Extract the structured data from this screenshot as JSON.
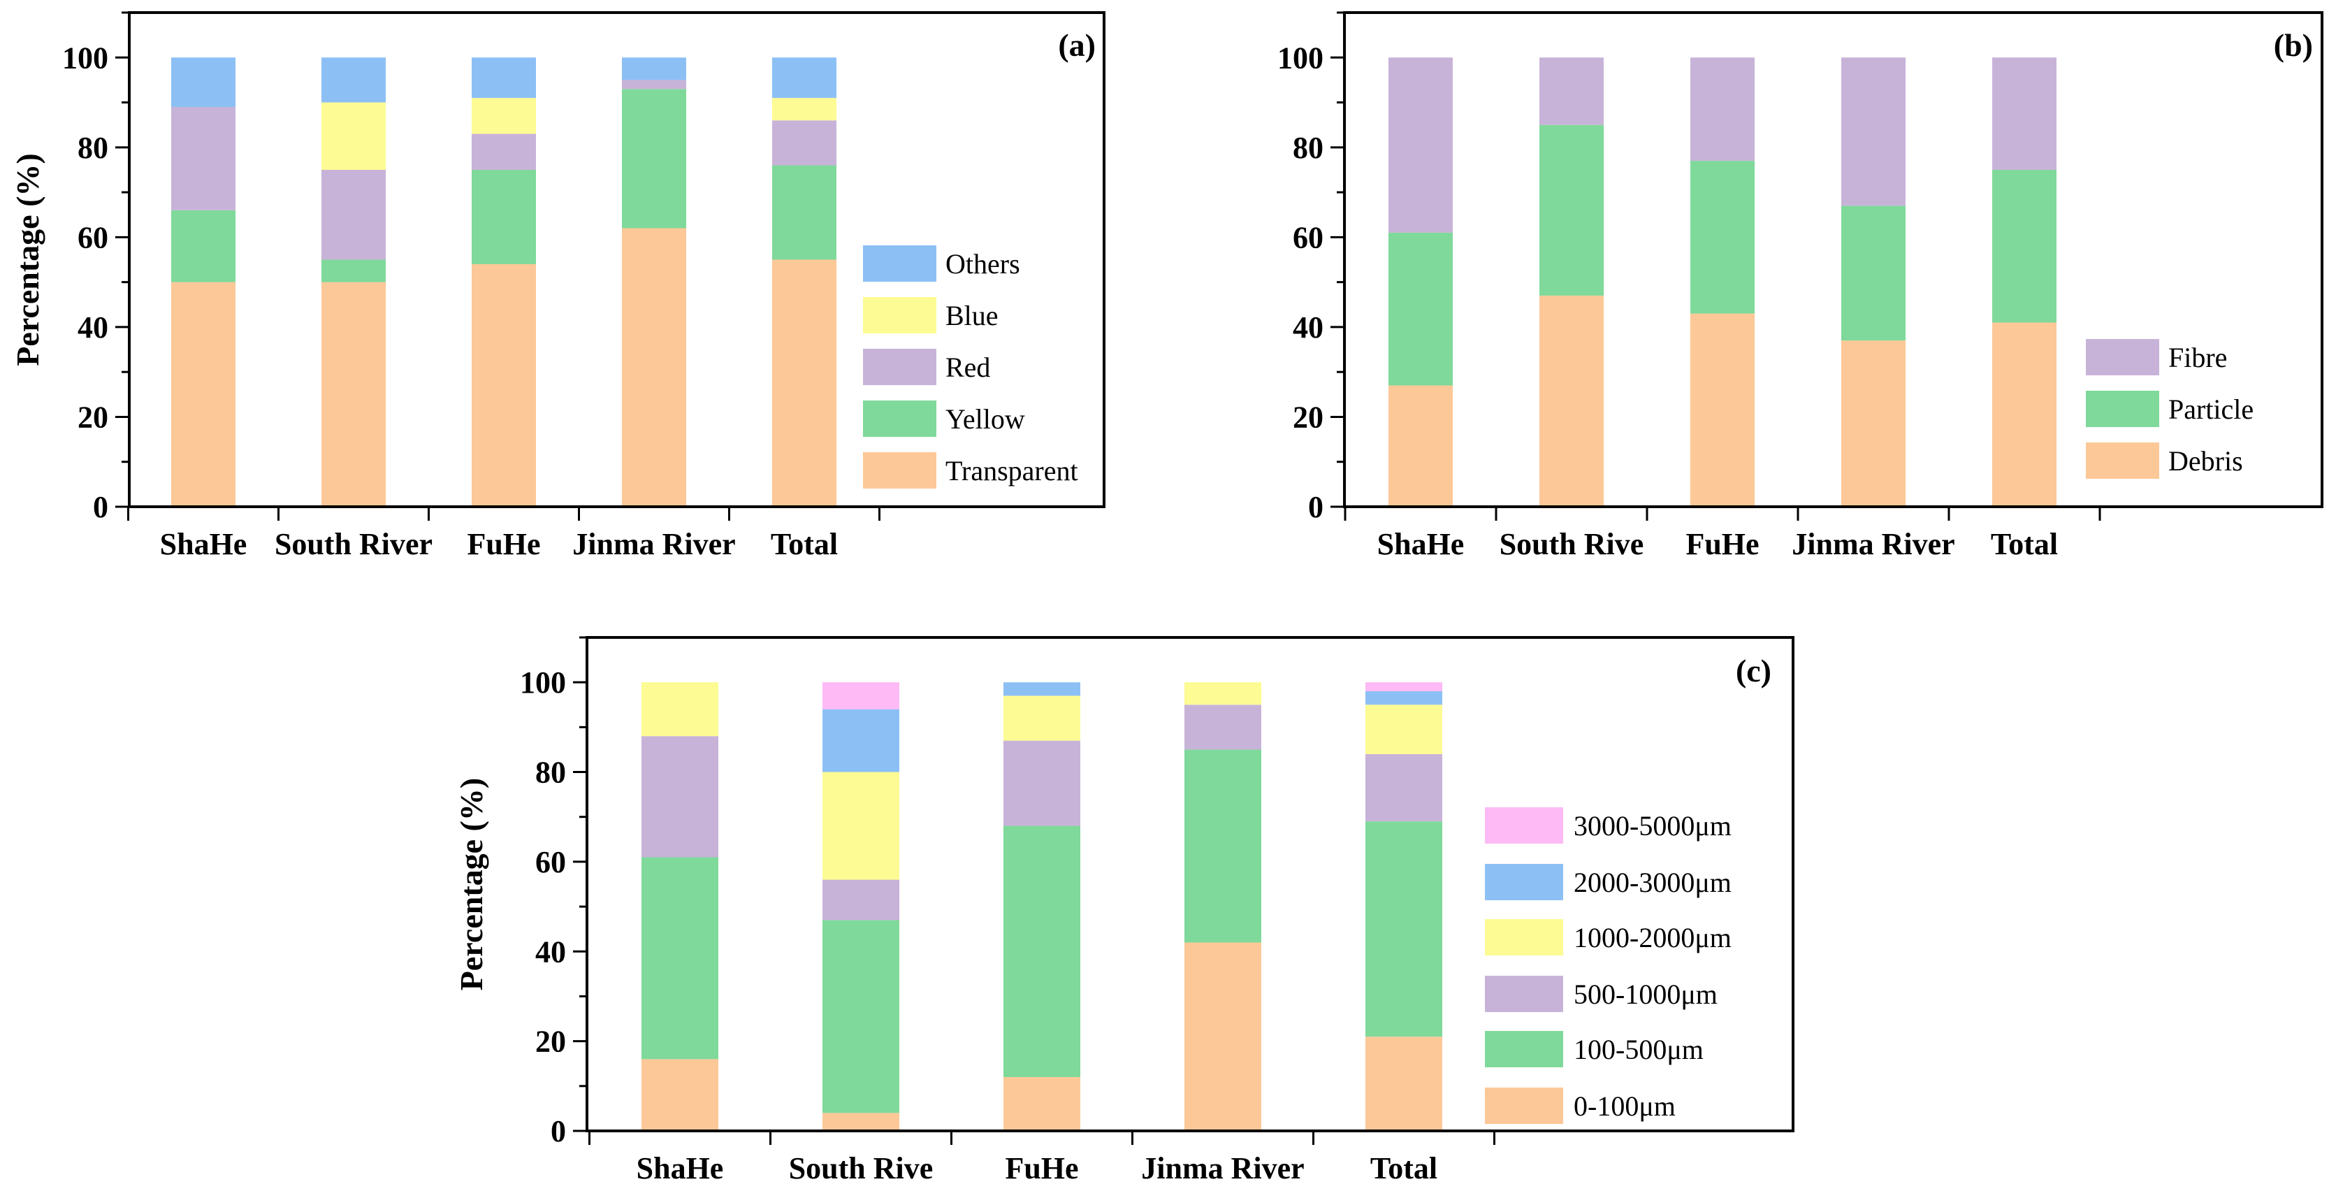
{
  "colors": {
    "peach": "#FDC897",
    "green": "#7FD99A",
    "lavender": "#C8B3D8",
    "yellow": "#FDFB93",
    "blue": "#8CC0F5",
    "pink": "#FDBAF4"
  },
  "chart_data": [
    {
      "type": "bar",
      "stacked": true,
      "panel_label": "(a)",
      "ylabel": "Percentage (%)",
      "xlabel": "",
      "ylim": [
        0,
        110
      ],
      "yticks": [
        0,
        20,
        40,
        60,
        80,
        100
      ],
      "categories": [
        "ShaHe",
        "South River",
        "FuHe",
        "Jinma River",
        "Total"
      ],
      "legend_position": "right",
      "series": [
        {
          "name": "Transparent",
          "color": "#FDC897",
          "values": [
            50,
            50,
            54,
            62,
            55
          ]
        },
        {
          "name": "Yellow",
          "color": "#7FD99A",
          "values": [
            16,
            5,
            21,
            31,
            21
          ]
        },
        {
          "name": "Red",
          "color": "#C8B3D8",
          "values": [
            23,
            20,
            8,
            2,
            10
          ]
        },
        {
          "name": "Blue",
          "color": "#FDFB93",
          "values": [
            0,
            15,
            8,
            0,
            5
          ]
        },
        {
          "name": "Others",
          "color": "#8CC0F5",
          "values": [
            11,
            10,
            9,
            5,
            9
          ]
        }
      ]
    },
    {
      "type": "bar",
      "stacked": true,
      "panel_label": "(b)",
      "ylabel": "",
      "xlabel": "",
      "ylim": [
        0,
        110
      ],
      "yticks": [
        0,
        20,
        40,
        60,
        80,
        100
      ],
      "categories": [
        "ShaHe",
        "South Rive",
        "FuHe",
        "Jinma River",
        "Total"
      ],
      "legend_position": "bottom-right",
      "series": [
        {
          "name": "Debris",
          "color": "#FDC897",
          "values": [
            27,
            47,
            43,
            37,
            41
          ]
        },
        {
          "name": "Particle",
          "color": "#7FD99A",
          "values": [
            34,
            38,
            34,
            30,
            34
          ]
        },
        {
          "name": "Fibre",
          "color": "#C8B3D8",
          "values": [
            39,
            15,
            23,
            33,
            25
          ]
        }
      ]
    },
    {
      "type": "bar",
      "stacked": true,
      "panel_label": "(c)",
      "ylabel": "Percentage (%)",
      "xlabel": "",
      "ylim": [
        0,
        110
      ],
      "yticks": [
        0,
        20,
        40,
        60,
        80,
        100
      ],
      "categories": [
        "ShaHe",
        "South Rive",
        "FuHe",
        "Jinma River",
        "Total"
      ],
      "legend_position": "right",
      "series": [
        {
          "name": "0-100μm",
          "color": "#FDC897",
          "values": [
            16,
            4,
            12,
            42,
            21
          ]
        },
        {
          "name": "100-500μm",
          "color": "#7FD99A",
          "values": [
            45,
            43,
            56,
            43,
            48
          ]
        },
        {
          "name": "500-1000μm",
          "color": "#C8B3D8",
          "values": [
            27,
            9,
            19,
            10,
            15
          ]
        },
        {
          "name": "1000-2000μm",
          "color": "#FDFB93",
          "values": [
            12,
            24,
            10,
            5,
            11
          ]
        },
        {
          "name": "2000-3000μm",
          "color": "#8CC0F5",
          "values": [
            0,
            14,
            3,
            0,
            3
          ]
        },
        {
          "name": "3000-5000μm",
          "color": "#FDBAF4",
          "values": [
            0,
            6,
            0,
            0,
            2
          ]
        }
      ]
    }
  ]
}
